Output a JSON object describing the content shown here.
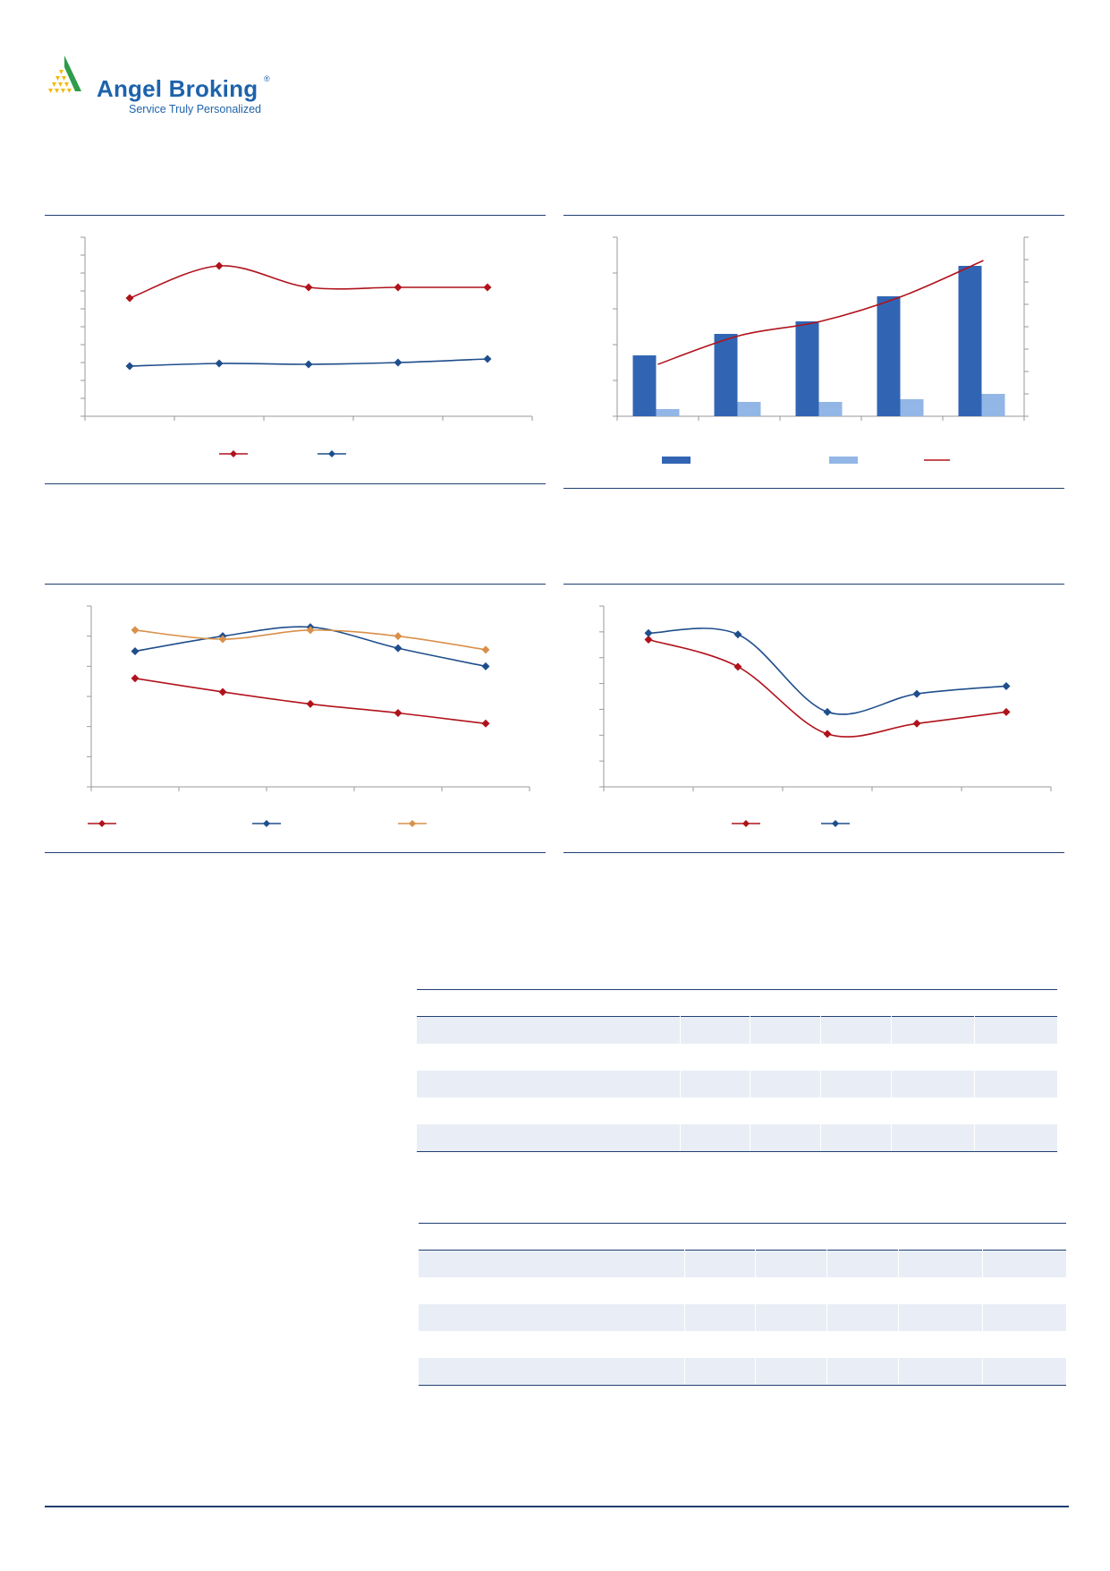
{
  "logo": {
    "name": "Angel Broking",
    "registered_mark": "®",
    "tagline": "Service Truly Personalized"
  },
  "colors": {
    "navy_rule": "#1f3f73",
    "series_red": "#b0121b",
    "series_blue": "#1f4e8c",
    "series_orange": "#d9904a",
    "bar_dark": "#3165b4",
    "bar_light": "#92b6e6",
    "axis": "#9a9a9a",
    "table_band": "#e9eef6"
  },
  "chart_data": [
    {
      "id": "chart-1",
      "type": "line",
      "smooth": true,
      "categories": [
        "",
        "",
        "",
        "",
        ""
      ],
      "ylim": [
        0,
        100
      ],
      "grid": false,
      "legend_position": "bottom",
      "series": [
        {
          "values": [
            66,
            84,
            72,
            72,
            72
          ],
          "color": "#b0121b"
        },
        {
          "values": [
            28,
            29.5,
            29,
            30,
            32
          ],
          "color": "#1f4e8c"
        }
      ]
    },
    {
      "id": "chart-2",
      "type": "bar",
      "categories": [
        "",
        "",
        "",
        "",
        ""
      ],
      "ylim": [
        0,
        100
      ],
      "y2lim": [
        0,
        100
      ],
      "grid": false,
      "legend_position": "bottom",
      "series": [
        {
          "kind": "bar",
          "values": [
            34,
            46,
            53,
            67,
            84
          ],
          "color": "#3165b4"
        },
        {
          "kind": "bar",
          "values": [
            4,
            8,
            8,
            9.5,
            12.5
          ],
          "color": "#92b6e6"
        },
        {
          "kind": "line",
          "axis": "secondary",
          "values": [
            29,
            45,
            53,
            67,
            87
          ],
          "color": "#b0121b"
        }
      ]
    },
    {
      "id": "chart-3",
      "type": "line",
      "smooth": true,
      "categories": [
        "",
        "",
        "",
        "",
        ""
      ],
      "ylim": [
        0,
        60
      ],
      "grid": false,
      "legend_position": "bottom",
      "series": [
        {
          "values": [
            36,
            31.5,
            27.5,
            24.5,
            21
          ],
          "color": "#b0121b"
        },
        {
          "values": [
            45,
            50,
            53,
            46,
            40
          ],
          "color": "#1f4e8c"
        },
        {
          "values": [
            52,
            49,
            52,
            50,
            45.5
          ],
          "color": "#d9904a"
        }
      ]
    },
    {
      "id": "chart-4",
      "type": "line",
      "smooth": true,
      "categories": [
        "",
        "",
        "",
        "",
        ""
      ],
      "ylim": [
        0,
        70
      ],
      "grid": false,
      "legend_position": "bottom",
      "series": [
        {
          "values": [
            57,
            46.5,
            20.5,
            24.5,
            29
          ],
          "color": "#b0121b"
        },
        {
          "values": [
            59.5,
            59,
            29,
            36,
            39
          ],
          "color": "#1f4e8c"
        }
      ]
    }
  ],
  "tables": [
    {
      "id": "table-1",
      "bands": [
        1,
        3,
        5
      ]
    },
    {
      "id": "table-2",
      "bands": [
        1,
        3,
        5
      ]
    }
  ]
}
